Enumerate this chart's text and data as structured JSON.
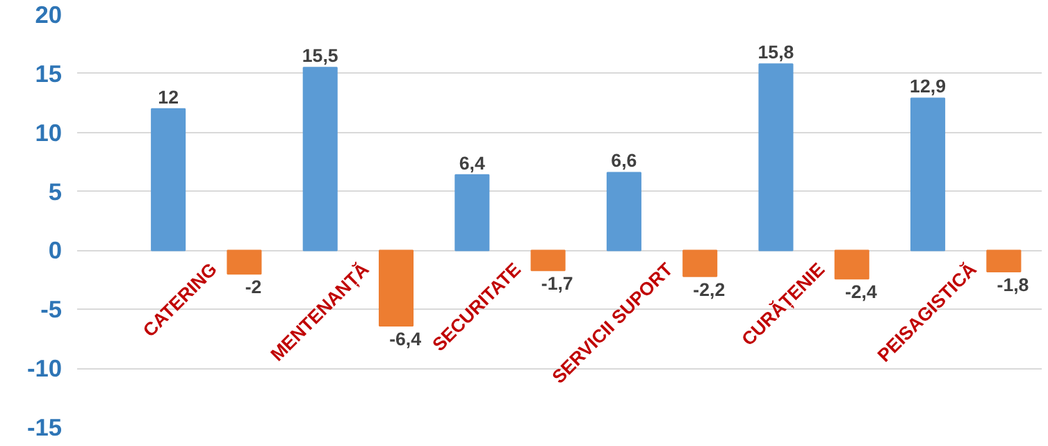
{
  "chart_data": {
    "type": "bar",
    "categories": [
      "CATERING",
      "MENTENANȚĂ",
      "SECURITATE",
      "SERVICII SUPORT",
      "CURĂȚENIE",
      "PEISAGISTICĂ"
    ],
    "series": [
      {
        "color": "#5b9bd5",
        "values": [
          12,
          15.5,
          6.4,
          6.6,
          15.8,
          12.9
        ],
        "value_labels": [
          "12",
          "15,5",
          "6,4",
          "6,6",
          "15,8",
          "12,9"
        ]
      },
      {
        "color": "#ed7d31",
        "values": [
          -2,
          -6.4,
          -1.7,
          -2.2,
          -2.4,
          -1.8
        ],
        "value_labels": [
          "-2",
          "-6,4",
          "-1,7",
          "-2,2",
          "-2,4",
          "-1,8"
        ]
      }
    ],
    "ylim": [
      -15,
      20
    ],
    "yticks": [
      -15,
      -10,
      -5,
      0,
      5,
      10,
      15,
      20
    ],
    "grid": "y"
  }
}
